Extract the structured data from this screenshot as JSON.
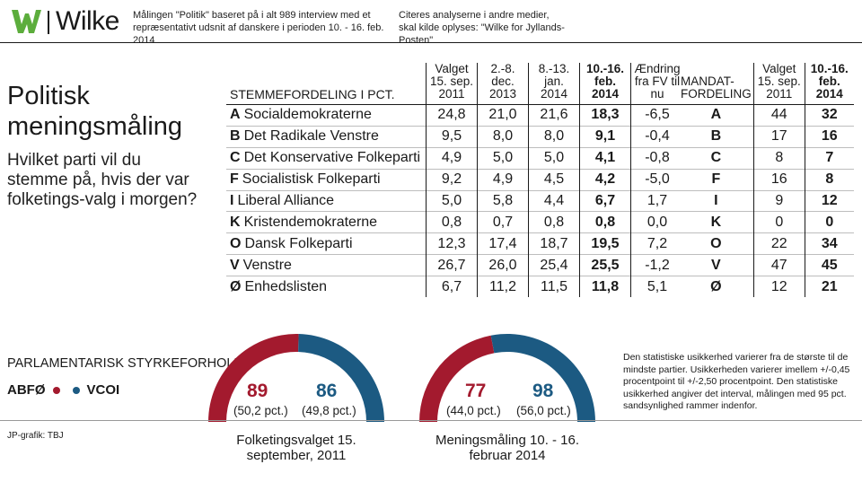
{
  "brand": {
    "name": "Wilke",
    "red": "#a31a2e",
    "blue": "#1c5a82",
    "green": "#5cad3c"
  },
  "header": {
    "note_left": "Målingen \"Politik\" baseret på i alt 989 interview med et repræsentativt udsnit af danskere i perioden 10. - 16. feb. 2014",
    "note_right": "Citeres analyserne i andre medier, skal kilde oplyses: \"Wilke for Jyllands-Posten\""
  },
  "title": "Politisk meningsmåling",
  "question": "Hvilket parti vil du stemme på, hvis der var folketings-valg i morgen?",
  "chart_data": [
    {
      "type": "table",
      "title": "STEMMEFORDELING I PCT.",
      "columns": [
        "Valget 15. sep. 2011",
        "2.-8. dec. 2013",
        "8.-13. jan. 2014",
        "10.-16. feb. 2014",
        "Ændring fra FV til nu"
      ],
      "rows": [
        {
          "letter": "A",
          "party": "Socialdemokraterne",
          "values": [
            "24,8",
            "21,0",
            "21,6",
            "18,3",
            "-6,5"
          ]
        },
        {
          "letter": "B",
          "party": "Det Radikale Venstre",
          "values": [
            "9,5",
            "8,0",
            "8,0",
            "9,1",
            "-0,4"
          ]
        },
        {
          "letter": "C",
          "party": "Det Konservative Folkeparti",
          "values": [
            "4,9",
            "5,0",
            "5,0",
            "4,1",
            "-0,8"
          ]
        },
        {
          "letter": "F",
          "party": "Socialistisk Folkeparti",
          "values": [
            "9,2",
            "4,9",
            "4,5",
            "4,2",
            "-5,0"
          ]
        },
        {
          "letter": "I",
          "party": "Liberal Alliance",
          "values": [
            "5,0",
            "5,8",
            "4,4",
            "6,7",
            "1,7"
          ]
        },
        {
          "letter": "K",
          "party": "Kristendemokraterne",
          "values": [
            "0,8",
            "0,7",
            "0,8",
            "0,8",
            "0,0"
          ]
        },
        {
          "letter": "O",
          "party": "Dansk Folkeparti",
          "values": [
            "12,3",
            "17,4",
            "18,7",
            "19,5",
            "7,2"
          ]
        },
        {
          "letter": "V",
          "party": "Venstre",
          "values": [
            "26,7",
            "26,0",
            "25,4",
            "25,5",
            "-1,2"
          ]
        },
        {
          "letter": "Ø",
          "party": "Enhedslisten",
          "values": [
            "6,7",
            "11,2",
            "11,5",
            "11,8",
            "5,1"
          ]
        }
      ]
    },
    {
      "type": "table",
      "title": "MANDAT-FORDELING",
      "columns": [
        "Valget 15. sep. 2011",
        "10.-16. feb. 2014"
      ],
      "rows": [
        {
          "letter": "A",
          "values": [
            "44",
            "32"
          ]
        },
        {
          "letter": "B",
          "values": [
            "17",
            "16"
          ]
        },
        {
          "letter": "C",
          "values": [
            "8",
            "7"
          ]
        },
        {
          "letter": "F",
          "values": [
            "16",
            "8"
          ]
        },
        {
          "letter": "I",
          "values": [
            "9",
            "12"
          ]
        },
        {
          "letter": "K",
          "values": [
            "0",
            "0"
          ]
        },
        {
          "letter": "O",
          "values": [
            "22",
            "34"
          ]
        },
        {
          "letter": "V",
          "values": [
            "47",
            "45"
          ]
        },
        {
          "letter": "Ø",
          "values": [
            "12",
            "21"
          ]
        }
      ]
    },
    {
      "type": "pie",
      "caption": "Folketingsvalget 15. september, 2011",
      "slices": [
        {
          "name": "ABFØ",
          "seats": 89,
          "share": 50.2,
          "label_seats": "89",
          "label_pct": "(50,2 pct.)",
          "color": "#a31a2e"
        },
        {
          "name": "VCOI",
          "seats": 86,
          "share": 49.8,
          "label_seats": "86",
          "label_pct": "(49,8 pct.)",
          "color": "#1c5a82"
        }
      ]
    },
    {
      "type": "pie",
      "caption": "Meningsmåling 10. - 16. februar 2014",
      "slices": [
        {
          "name": "ABFØ",
          "seats": 77,
          "share": 44.0,
          "label_seats": "77",
          "label_pct": "(44,0 pct.)",
          "color": "#a31a2e"
        },
        {
          "name": "VCOI",
          "seats": 98,
          "share": 56.0,
          "label_seats": "98",
          "label_pct": "(56,0 pct.)",
          "color": "#1c5a82"
        }
      ]
    }
  ],
  "strength": {
    "label": "PARLAMENTARISK STYRKEFORHOLD",
    "left_bloc": "ABFØ",
    "right_bloc": "VCOI"
  },
  "credit": "JP-grafik: TBJ",
  "stat_note": "Den statistiske usikkerhed varierer fra de største til de mindste partier. Usikkerheden varierer imellem +/-0,45 procentpoint til +/-2,50 procentpoint. Den statistiske usikkerhed angiver det interval, målingen med 95 pct. sandsynlighed rammer indenfor."
}
